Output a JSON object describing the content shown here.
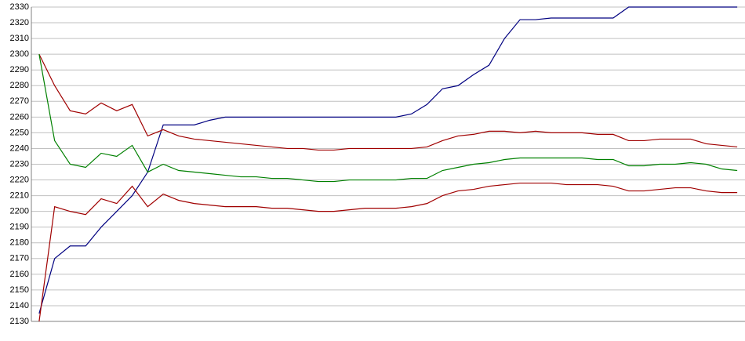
{
  "chart_data": {
    "type": "line",
    "categories": [
      null,
      null,
      null,
      null,
      null,
      null,
      null,
      null,
      null,
      null,
      null,
      null,
      null,
      null,
      null,
      null,
      null,
      null,
      null,
      null,
      null,
      null,
      null,
      null,
      null,
      null,
      null,
      null,
      null,
      null,
      null,
      null,
      null,
      null,
      null,
      null,
      null,
      null,
      null,
      null,
      null,
      null,
      null,
      null,
      null,
      null
    ],
    "series": [
      {
        "color": "#000080",
        "values": [
          2135,
          2170,
          2178,
          2178,
          2190,
          2200,
          2210,
          2225,
          2255,
          2255,
          2255,
          2258,
          2260,
          2260,
          2260,
          2260,
          2260,
          2260,
          2260,
          2260,
          2260,
          2260,
          2260,
          2260,
          2262,
          2268,
          2278,
          2280,
          2287,
          2293,
          2310,
          2322,
          2322,
          2323,
          2323,
          2323,
          2323,
          2323,
          2330,
          2330,
          2330,
          2330,
          2330,
          2330,
          2330,
          2330
        ]
      },
      {
        "color": "#a00000",
        "values": [
          2300,
          2280,
          2264,
          2262,
          2269,
          2264,
          2268,
          2248,
          2252,
          2248,
          2246,
          2245,
          2244,
          2243,
          2242,
          2241,
          2240,
          2240,
          2239,
          2239,
          2240,
          2240,
          2240,
          2240,
          2240,
          2241,
          2245,
          2248,
          2249,
          2251,
          2251,
          2250,
          2251,
          2250,
          2250,
          2250,
          2249,
          2249,
          2245,
          2245,
          2246,
          2246,
          2246,
          2243,
          2242,
          2241
        ]
      },
      {
        "color": "#008000",
        "values": [
          2300,
          2245,
          2230,
          2228,
          2237,
          2235,
          2242,
          2225,
          2230,
          2226,
          2225,
          2224,
          2223,
          2222,
          2222,
          2221,
          2221,
          2220,
          2219,
          2219,
          2220,
          2220,
          2220,
          2220,
          2221,
          2221,
          2226,
          2228,
          2230,
          2231,
          2233,
          2234,
          2234,
          2234,
          2234,
          2234,
          2233,
          2233,
          2229,
          2229,
          2230,
          2230,
          2231,
          2230,
          2227,
          2226
        ]
      },
      {
        "color": "#a00000",
        "values": [
          2130,
          2203,
          2200,
          2198,
          2208,
          2205,
          2216,
          2203,
          2211,
          2207,
          2205,
          2204,
          2203,
          2203,
          2203,
          2202,
          2202,
          2201,
          2200,
          2200,
          2201,
          2202,
          2202,
          2202,
          2203,
          2205,
          2210,
          2213,
          2214,
          2216,
          2217,
          2218,
          2218,
          2218,
          2217,
          2217,
          2217,
          2216,
          2213,
          2213,
          2214,
          2215,
          2215,
          2213,
          2212,
          2212
        ]
      }
    ],
    "ylim": [
      2130,
      2330
    ],
    "yticks": [
      2130,
      2140,
      2150,
      2160,
      2170,
      2180,
      2190,
      2200,
      2210,
      2220,
      2230,
      2240,
      2250,
      2260,
      2270,
      2280,
      2290,
      2300,
      2310,
      2320,
      2330
    ],
    "grid": true
  }
}
